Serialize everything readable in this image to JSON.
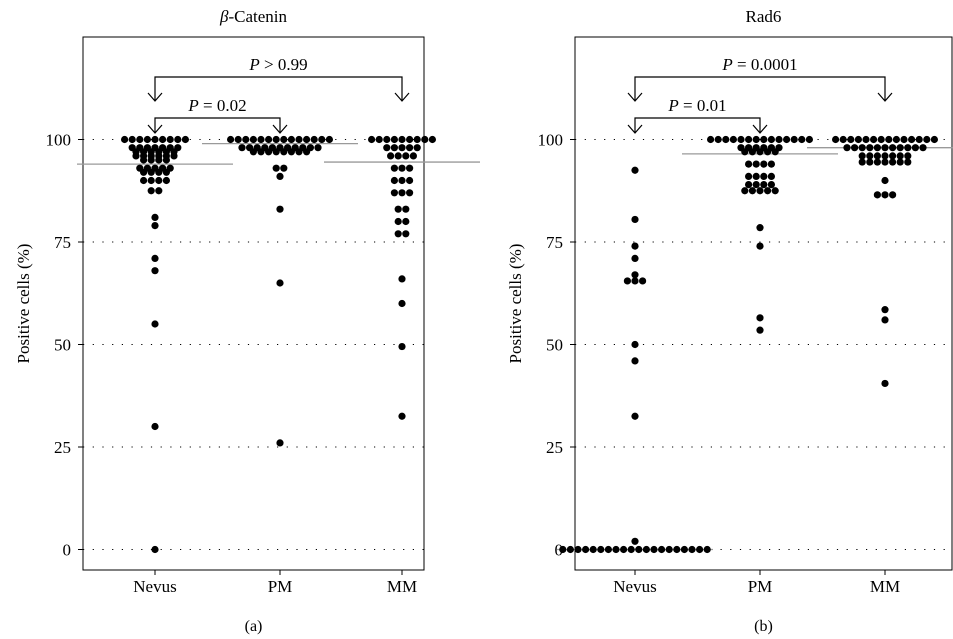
{
  "chart_data": [
    {
      "type": "scatter",
      "panel_label": "(a)",
      "title_symbol": "β",
      "title_text": "-Catenin",
      "xlabel": "",
      "ylabel": "Positive cells (%)",
      "ylim": [
        -5,
        125
      ],
      "yticks": [
        0,
        25,
        50,
        75,
        100
      ],
      "grid": "dotted horizontal",
      "categories": [
        "Nevus",
        "PM",
        "MM"
      ],
      "medians": [
        94,
        99,
        94.5
      ],
      "annotations": [
        {
          "p_var": "P",
          "rest": " = 0.02",
          "from": "Nevus",
          "to": "PM",
          "level": "low"
        },
        {
          "p_var": "P",
          "rest": " > 0.99",
          "from": "Nevus",
          "to": "MM",
          "level": "high"
        }
      ],
      "series": [
        {
          "category": "Nevus",
          "points": [
            [
              100,
              9
            ],
            [
              98,
              7
            ],
            [
              97,
              6
            ],
            [
              96,
              6
            ],
            [
              95,
              4
            ],
            [
              93,
              5
            ],
            [
              92,
              4
            ],
            [
              90,
              4
            ],
            [
              87.5,
              2
            ],
            [
              81,
              1
            ],
            [
              79,
              1
            ],
            [
              71,
              1
            ],
            [
              68,
              1
            ],
            [
              55,
              1
            ],
            [
              30,
              1
            ],
            [
              0,
              1
            ]
          ]
        },
        {
          "category": "PM",
          "points": [
            [
              100,
              14
            ],
            [
              98,
              11
            ],
            [
              97,
              8
            ],
            [
              93,
              2
            ],
            [
              91,
              1
            ],
            [
              83,
              1
            ],
            [
              65,
              1
            ],
            [
              26,
              1
            ]
          ]
        },
        {
          "category": "MM",
          "points": [
            [
              100,
              9
            ],
            [
              98,
              5
            ],
            [
              96,
              4
            ],
            [
              93,
              3
            ],
            [
              90,
              3
            ],
            [
              87,
              3
            ],
            [
              83,
              2
            ],
            [
              80,
              2
            ],
            [
              77,
              2
            ],
            [
              66,
              1
            ],
            [
              60,
              1
            ],
            [
              49.5,
              1
            ],
            [
              32.5,
              1
            ]
          ]
        }
      ]
    },
    {
      "type": "scatter",
      "panel_label": "(b)",
      "title_symbol": "",
      "title_text": "Rad6",
      "xlabel": "",
      "ylabel": "Positive cells (%)",
      "ylim": [
        -5,
        125
      ],
      "yticks": [
        0,
        25,
        50,
        75,
        100
      ],
      "grid": "dotted horizontal",
      "categories": [
        "Nevus",
        "PM",
        "MM"
      ],
      "medians": [
        0,
        96.5,
        98
      ],
      "annotations": [
        {
          "p_var": "P",
          "rest": " = 0.01",
          "from": "Nevus",
          "to": "PM",
          "level": "low"
        },
        {
          "p_var": "P",
          "rest": " = 0.0001",
          "from": "Nevus",
          "to": "MM",
          "level": "high"
        }
      ],
      "series": [
        {
          "category": "Nevus",
          "points": [
            [
              92.5,
              1
            ],
            [
              80.5,
              1
            ],
            [
              74,
              1
            ],
            [
              71,
              1
            ],
            [
              67,
              1
            ],
            [
              65.5,
              3
            ],
            [
              50,
              1
            ],
            [
              46,
              1
            ],
            [
              32.5,
              1
            ],
            [
              2,
              1
            ],
            [
              0,
              20
            ]
          ]
        },
        {
          "category": "PM",
          "points": [
            [
              100,
              14
            ],
            [
              98,
              6
            ],
            [
              97,
              5
            ],
            [
              94,
              4
            ],
            [
              91,
              4
            ],
            [
              89,
              4
            ],
            [
              87.5,
              5
            ],
            [
              78.5,
              1
            ],
            [
              74,
              1
            ],
            [
              56.5,
              1
            ],
            [
              53.5,
              1
            ]
          ]
        },
        {
          "category": "MM",
          "points": [
            [
              100,
              14
            ],
            [
              98,
              11
            ],
            [
              96,
              7
            ],
            [
              94.5,
              7
            ],
            [
              90,
              1
            ],
            [
              86.5,
              3
            ],
            [
              58.5,
              1
            ],
            [
              56,
              1
            ],
            [
              40.5,
              1
            ]
          ]
        }
      ]
    }
  ]
}
